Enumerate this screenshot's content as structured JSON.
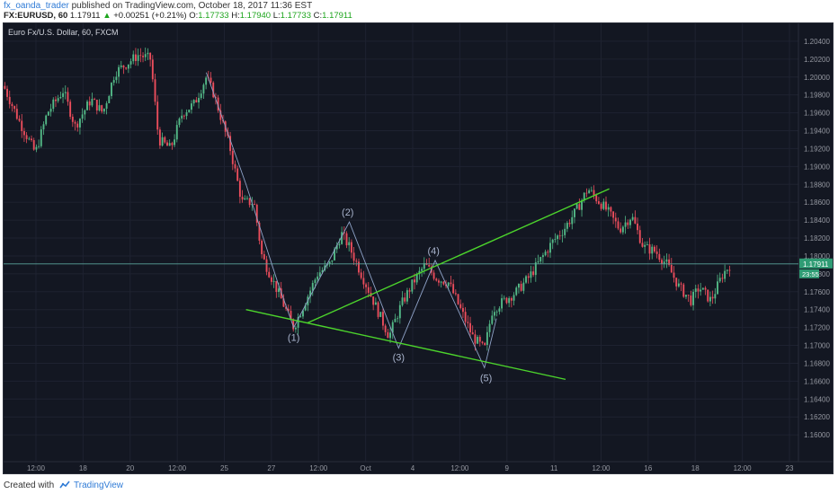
{
  "header": {
    "username": "fx_oanda_trader",
    "published": "published on TradingView.com, October 18, 2017 11:36 EST",
    "symbol": "FX:EURUSD, 60",
    "last": "1.17911",
    "change": "+0.00251 (+0.21%)",
    "o_label": "O:",
    "o_value": "1.17733",
    "h_label": "H:",
    "h_value": "1.17940",
    "l_label": "L:",
    "l_value": "1.17733",
    "c_label": "C:",
    "c_value": "1.17911"
  },
  "footer": {
    "created_with": "Created with",
    "brand": "TradingView",
    "logo_icon": "tradingview-logo-icon"
  },
  "colors": {
    "background": "#131722",
    "grid": "#1e2230",
    "up": "#53b987",
    "down": "#eb4d5c",
    "trendline": "#4cd42c",
    "wave": "#8fa3c8",
    "price_line": "#5aa39a",
    "price_tag": "#2f9c74"
  },
  "chart_data": {
    "type": "candlestick",
    "title": "Euro Fx/U.S. Dollar, 60, FXCM",
    "ylim": [
      1.157,
      1.206
    ],
    "y_ticks": [
      "1.20400",
      "1.20200",
      "1.20000",
      "1.19800",
      "1.19600",
      "1.19400",
      "1.19200",
      "1.19000",
      "1.18800",
      "1.18600",
      "1.18400",
      "1.18200",
      "1.18000",
      "1.17800",
      "1.17600",
      "1.17400",
      "1.17200",
      "1.17000",
      "1.16800",
      "1.16600",
      "1.16400",
      "1.16200",
      "1.16000"
    ],
    "x_ticks": [
      "12:00",
      "18",
      "20",
      "12:00",
      "25",
      "27",
      "12:00",
      "Oct",
      "4",
      "12:00",
      "9",
      "11",
      "12:00",
      "16",
      "18",
      "12:00",
      "23"
    ],
    "current_price": "1.17911",
    "countdown": "23:55",
    "path": [
      {
        "x": 0.0,
        "y": 1.199
      },
      {
        "x": 0.02,
        "y": 1.195
      },
      {
        "x": 0.04,
        "y": 1.1915
      },
      {
        "x": 0.055,
        "y": 1.196
      },
      {
        "x": 0.075,
        "y": 1.1985
      },
      {
        "x": 0.09,
        "y": 1.1945
      },
      {
        "x": 0.11,
        "y": 1.1975
      },
      {
        "x": 0.125,
        "y": 1.196
      },
      {
        "x": 0.14,
        "y": 1.2005
      },
      {
        "x": 0.155,
        "y": 1.2015
      },
      {
        "x": 0.17,
        "y": 1.2025
      },
      {
        "x": 0.185,
        "y": 1.202
      },
      {
        "x": 0.195,
        "y": 1.193
      },
      {
        "x": 0.21,
        "y": 1.192
      },
      {
        "x": 0.225,
        "y": 1.196
      },
      {
        "x": 0.24,
        "y": 1.197
      },
      {
        "x": 0.255,
        "y": 1.2
      },
      {
        "x": 0.265,
        "y": 1.198
      },
      {
        "x": 0.285,
        "y": 1.192
      },
      {
        "x": 0.3,
        "y": 1.186
      },
      {
        "x": 0.315,
        "y": 1.186
      },
      {
        "x": 0.325,
        "y": 1.18
      },
      {
        "x": 0.345,
        "y": 1.176
      },
      {
        "x": 0.365,
        "y": 1.172
      },
      {
        "x": 0.38,
        "y": 1.175
      },
      {
        "x": 0.395,
        "y": 1.178
      },
      {
        "x": 0.41,
        "y": 1.179
      },
      {
        "x": 0.425,
        "y": 1.1825
      },
      {
        "x": 0.435,
        "y": 1.181
      },
      {
        "x": 0.45,
        "y": 1.178
      },
      {
        "x": 0.47,
        "y": 1.174
      },
      {
        "x": 0.485,
        "y": 1.171
      },
      {
        "x": 0.5,
        "y": 1.1745
      },
      {
        "x": 0.515,
        "y": 1.177
      },
      {
        "x": 0.53,
        "y": 1.179
      },
      {
        "x": 0.545,
        "y": 1.1775
      },
      {
        "x": 0.56,
        "y": 1.177
      },
      {
        "x": 0.575,
        "y": 1.174
      },
      {
        "x": 0.59,
        "y": 1.171
      },
      {
        "x": 0.605,
        "y": 1.1695
      },
      {
        "x": 0.615,
        "y": 1.174
      },
      {
        "x": 0.63,
        "y": 1.175
      },
      {
        "x": 0.645,
        "y": 1.176
      },
      {
        "x": 0.66,
        "y": 1.1775
      },
      {
        "x": 0.675,
        "y": 1.1795
      },
      {
        "x": 0.69,
        "y": 1.1815
      },
      {
        "x": 0.705,
        "y": 1.183
      },
      {
        "x": 0.72,
        "y": 1.185
      },
      {
        "x": 0.735,
        "y": 1.1875
      },
      {
        "x": 0.745,
        "y": 1.1865
      },
      {
        "x": 0.76,
        "y": 1.185
      },
      {
        "x": 0.775,
        "y": 1.183
      },
      {
        "x": 0.79,
        "y": 1.1845
      },
      {
        "x": 0.805,
        "y": 1.181
      },
      {
        "x": 0.82,
        "y": 1.1805
      },
      {
        "x": 0.835,
        "y": 1.179
      },
      {
        "x": 0.85,
        "y": 1.1765
      },
      {
        "x": 0.865,
        "y": 1.175
      },
      {
        "x": 0.875,
        "y": 1.1765
      },
      {
        "x": 0.89,
        "y": 1.175
      },
      {
        "x": 0.905,
        "y": 1.178
      },
      {
        "x": 0.915,
        "y": 1.1791
      }
    ],
    "trendlines": [
      {
        "name": "upper-trendline",
        "x1": 0.382,
        "y1": 1.1725,
        "x2": 0.762,
        "y2": 1.1875
      },
      {
        "name": "lower-trendline",
        "x1": 0.305,
        "y1": 1.174,
        "x2": 0.707,
        "y2": 1.1662
      }
    ],
    "wave_path": [
      {
        "x": 0.255,
        "y": 1.2005
      },
      {
        "x": 0.305,
        "y": 1.188
      },
      {
        "x": 0.345,
        "y": 1.177
      },
      {
        "x": 0.365,
        "y": 1.172
      },
      {
        "x": 0.435,
        "y": 1.1838
      },
      {
        "x": 0.497,
        "y": 1.1697
      },
      {
        "x": 0.543,
        "y": 1.1795
      },
      {
        "x": 0.605,
        "y": 1.1675
      },
      {
        "x": 0.62,
        "y": 1.173
      }
    ],
    "wave_labels": [
      {
        "text": "(1)",
        "x": 0.365,
        "y": 1.1705
      },
      {
        "text": "(2)",
        "x": 0.433,
        "y": 1.1845
      },
      {
        "text": "(3)",
        "x": 0.497,
        "y": 1.1683
      },
      {
        "text": "(4)",
        "x": 0.541,
        "y": 1.1802
      },
      {
        "text": "(5)",
        "x": 0.607,
        "y": 1.166
      }
    ]
  }
}
